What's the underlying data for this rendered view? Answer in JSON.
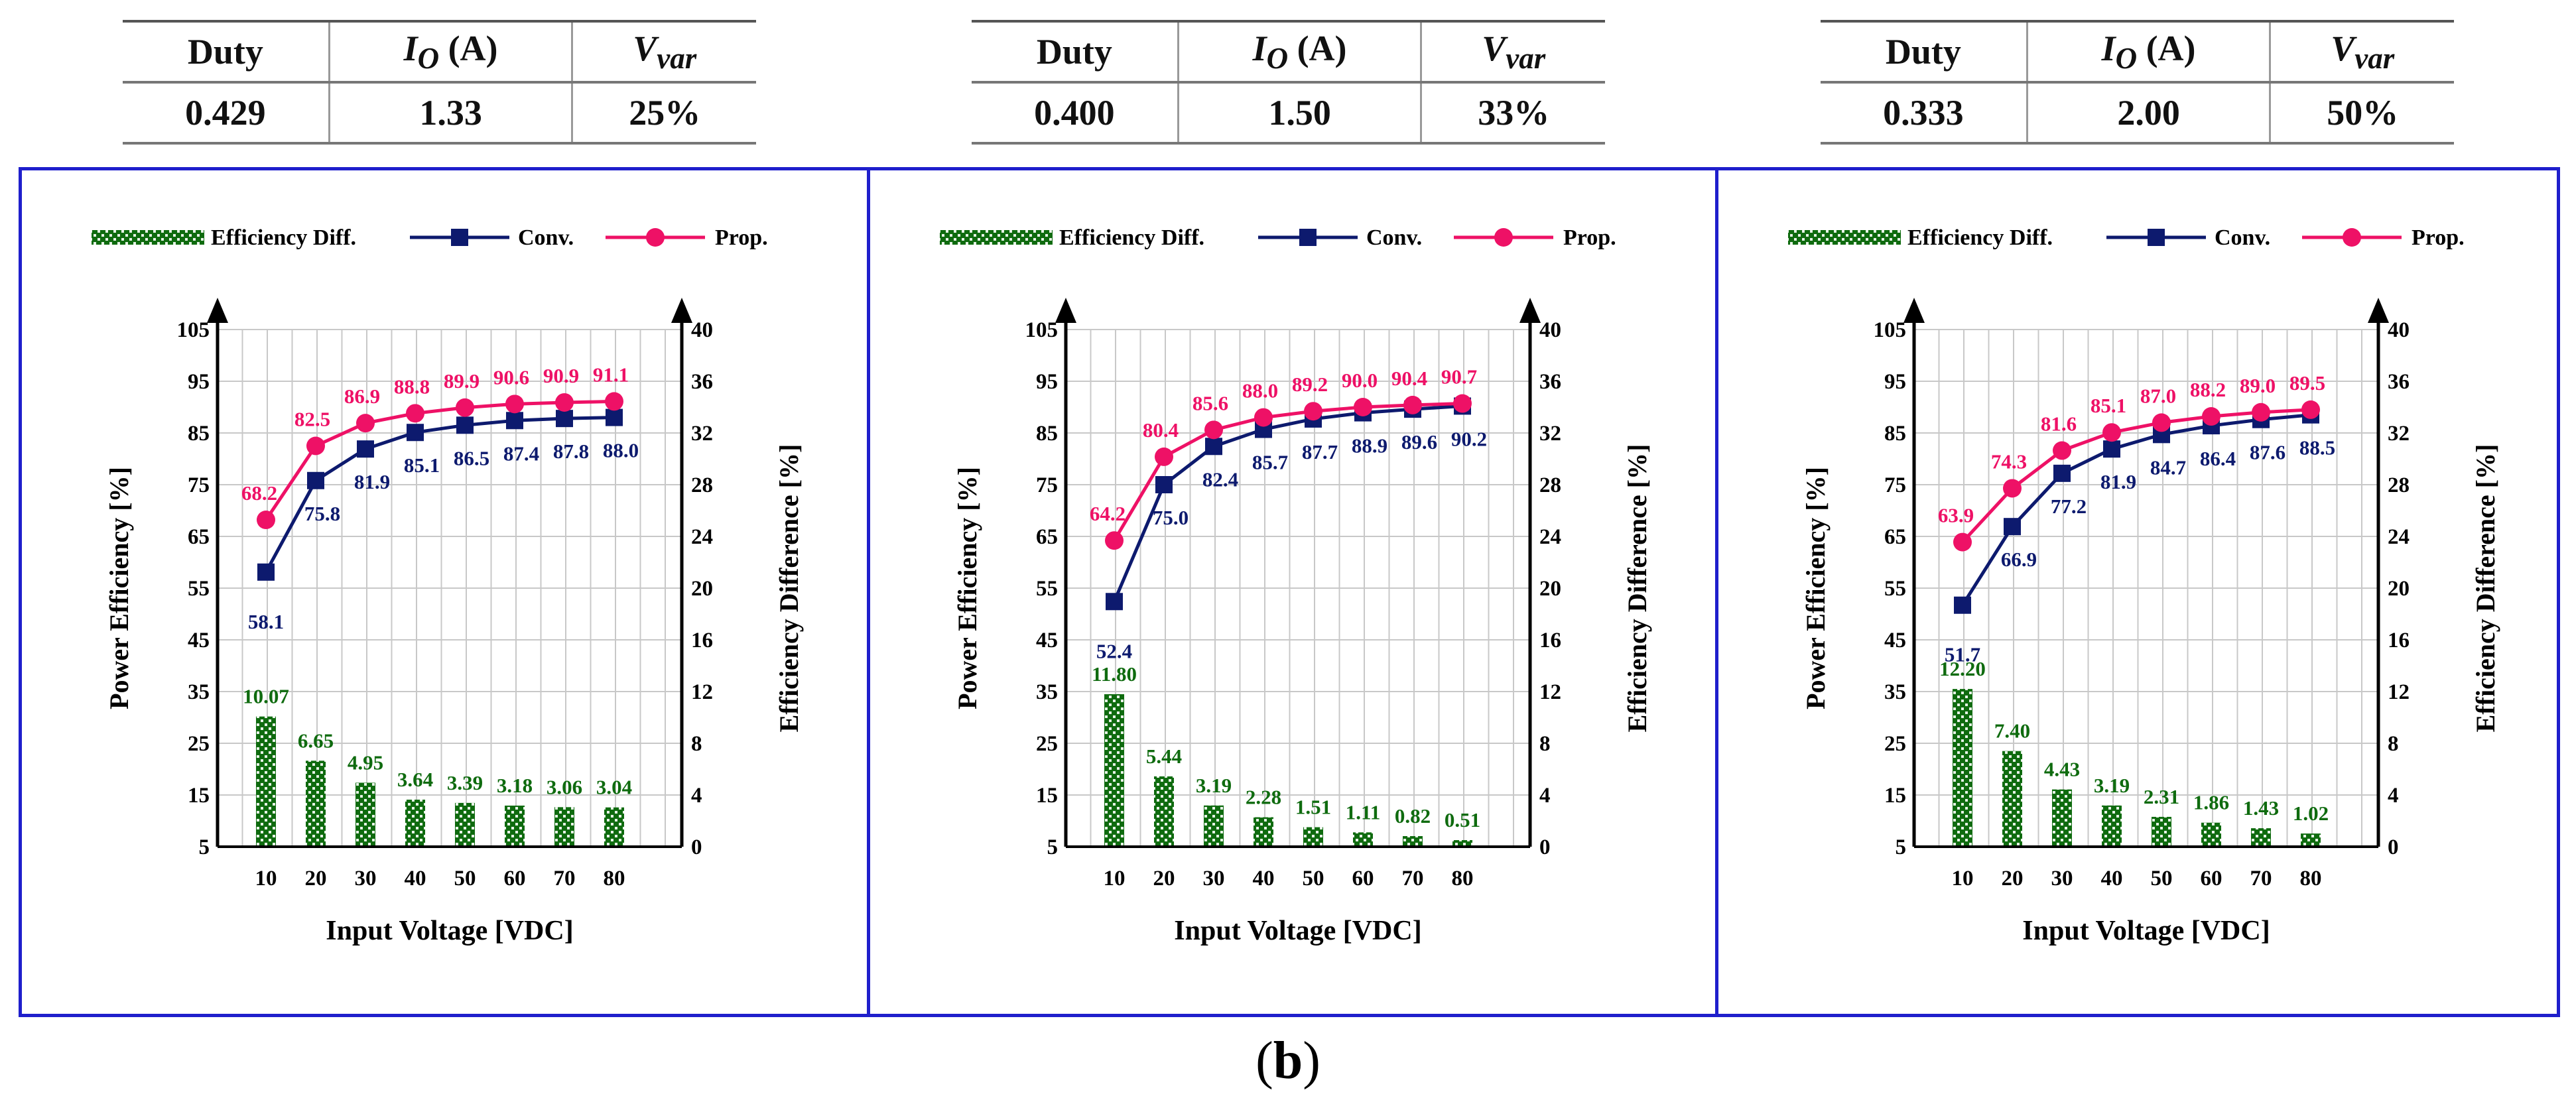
{
  "tables": [
    {
      "headers": {
        "duty": "Duty",
        "io_sym": "I",
        "io_sub": "O",
        "io_unit": " (A)",
        "vvar_sym": "V",
        "vvar_sub": "var"
      },
      "values": {
        "duty": "0.429",
        "io": "1.33",
        "vvar": "25%"
      }
    },
    {
      "headers": {
        "duty": "Duty",
        "io_sym": "I",
        "io_sub": "O",
        "io_unit": " (A)",
        "vvar_sym": "V",
        "vvar_sub": "var"
      },
      "values": {
        "duty": "0.400",
        "io": "1.50",
        "vvar": "33%"
      }
    },
    {
      "headers": {
        "duty": "Duty",
        "io_sym": "I",
        "io_sub": "O",
        "io_unit": " (A)",
        "vvar_sym": "V",
        "vvar_sub": "var"
      },
      "values": {
        "duty": "0.333",
        "io": "2.00",
        "vvar": "50%"
      }
    }
  ],
  "colors": {
    "prop": "#ee1166",
    "conv": "#0d1a6e",
    "diff": "#0f6b0f",
    "frame": "#1f1fcc",
    "grid": "#c8c8c8"
  },
  "caption": {
    "open": "(",
    "letter": "b",
    "close": ")"
  },
  "chart_data": [
    {
      "type": "bar+line",
      "legend": {
        "diff": "Efficiency Diff.",
        "conv": "Conv.",
        "prop": "Prop."
      },
      "xlabel": "Input Voltage [VDC]",
      "ylabel": "Power Efficiency [%]",
      "y2label": "Efficiency Difference [%]",
      "x": [
        10,
        20,
        30,
        40,
        50,
        60,
        70,
        80
      ],
      "ylim": [
        5,
        105
      ],
      "yticks": [
        5,
        15,
        25,
        35,
        45,
        55,
        65,
        75,
        85,
        95,
        105
      ],
      "y2lim": [
        0,
        40
      ],
      "y2ticks": [
        0,
        4,
        8,
        12,
        16,
        20,
        24,
        28,
        32,
        36,
        40
      ],
      "series": [
        {
          "name": "Prop.",
          "values": [
            68.2,
            82.5,
            86.9,
            88.8,
            89.9,
            90.6,
            90.9,
            91.1
          ],
          "labels": [
            "68.2",
            "82.5",
            "86.9",
            "88.8",
            "89.9",
            "90.6",
            "90.9",
            "91.1"
          ]
        },
        {
          "name": "Conv.",
          "values": [
            58.1,
            75.8,
            81.9,
            85.1,
            86.5,
            87.4,
            87.8,
            88.0
          ],
          "labels": [
            "58.1",
            "75.8",
            "81.9",
            "85.1",
            "86.5",
            "87.4",
            "87.8",
            "88.0"
          ]
        },
        {
          "name": "Efficiency Diff.",
          "axis": "right",
          "values": [
            10.07,
            6.65,
            4.95,
            3.64,
            3.39,
            3.18,
            3.06,
            3.04
          ],
          "labels": [
            "10.07",
            "6.65",
            "4.95",
            "3.64",
            "3.39",
            "3.18",
            "3.06",
            "3.04"
          ]
        }
      ]
    },
    {
      "type": "bar+line",
      "legend": {
        "diff": "Efficiency Diff.",
        "conv": "Conv.",
        "prop": "Prop."
      },
      "xlabel": "Input Voltage [VDC]",
      "ylabel": "Power Efficiency [%]",
      "y2label": "Efficiency Difference [%]",
      "x": [
        10,
        20,
        30,
        40,
        50,
        60,
        70,
        80
      ],
      "ylim": [
        5,
        105
      ],
      "yticks": [
        5,
        15,
        25,
        35,
        45,
        55,
        65,
        75,
        85,
        95,
        105
      ],
      "y2lim": [
        0,
        40
      ],
      "y2ticks": [
        0,
        4,
        8,
        12,
        16,
        20,
        24,
        28,
        32,
        36,
        40
      ],
      "series": [
        {
          "name": "Prop.",
          "values": [
            64.2,
            80.4,
            85.6,
            88.0,
            89.2,
            90.0,
            90.4,
            90.7
          ],
          "labels": [
            "64.2",
            "80.4",
            "85.6",
            "88.0",
            "89.2",
            "90.0",
            "90.4",
            "90.7"
          ]
        },
        {
          "name": "Conv.",
          "values": [
            52.4,
            75.0,
            82.4,
            85.7,
            87.7,
            88.9,
            89.6,
            90.2
          ],
          "labels": [
            "52.4",
            "75.0",
            "82.4",
            "85.7",
            "87.7",
            "88.9",
            "89.6",
            "90.2"
          ]
        },
        {
          "name": "Efficiency Diff.",
          "axis": "right",
          "values": [
            11.8,
            5.44,
            3.19,
            2.28,
            1.51,
            1.11,
            0.82,
            0.51
          ],
          "labels": [
            "11.80",
            "5.44",
            "3.19",
            "2.28",
            "1.51",
            "1.11",
            "0.82",
            "0.51"
          ]
        }
      ]
    },
    {
      "type": "bar+line",
      "legend": {
        "diff": "Efficiency Diff.",
        "conv": "Conv.",
        "prop": "Prop."
      },
      "xlabel": "Input Voltage [VDC]",
      "ylabel": "Power Efficiency [%]",
      "y2label": "Efficiency Difference [%]",
      "x": [
        10,
        20,
        30,
        40,
        50,
        60,
        70,
        80
      ],
      "ylim": [
        5,
        105
      ],
      "yticks": [
        5,
        15,
        25,
        35,
        45,
        55,
        65,
        75,
        85,
        95,
        105
      ],
      "y2lim": [
        0,
        40
      ],
      "y2ticks": [
        0,
        4,
        8,
        12,
        16,
        20,
        24,
        28,
        32,
        36,
        40
      ],
      "series": [
        {
          "name": "Prop.",
          "values": [
            63.9,
            74.3,
            81.6,
            85.1,
            87.0,
            88.2,
            89.0,
            89.5
          ],
          "labels": [
            "63.9",
            "74.3",
            "81.6",
            "85.1",
            "87.0",
            "88.2",
            "89.0",
            "89.5"
          ]
        },
        {
          "name": "Conv.",
          "values": [
            51.7,
            66.9,
            77.2,
            81.9,
            84.7,
            86.4,
            87.6,
            88.5
          ],
          "labels": [
            "51.7",
            "66.9",
            "77.2",
            "81.9",
            "84.7",
            "86.4",
            "87.6",
            "88.5"
          ]
        },
        {
          "name": "Efficiency Diff.",
          "axis": "right",
          "values": [
            12.2,
            7.4,
            4.43,
            3.19,
            2.31,
            1.86,
            1.43,
            1.02
          ],
          "labels": [
            "12.20",
            "7.40",
            "4.43",
            "3.19",
            "2.31",
            "1.86",
            "1.43",
            "1.02"
          ]
        }
      ]
    }
  ]
}
